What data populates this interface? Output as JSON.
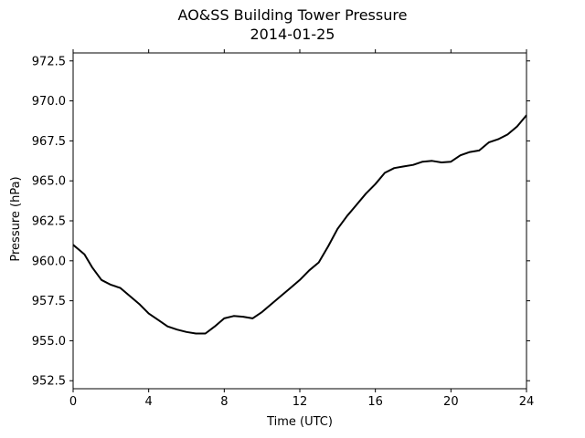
{
  "chart_data": {
    "type": "line",
    "title": "AO&SS Building Tower Pressure",
    "subtitle": "2014-01-25",
    "xlabel": "Time (UTC)",
    "ylabel": "Pressure (hPa)",
    "xlim": [
      0,
      24
    ],
    "ylim": [
      952.0,
      973.0
    ],
    "xticks": [
      0,
      4,
      8,
      12,
      16,
      20,
      24
    ],
    "xtick_labels": [
      "0",
      "4",
      "8",
      "12",
      "16",
      "20",
      "24"
    ],
    "yticks": [
      952.5,
      955.0,
      957.5,
      960.0,
      962.5,
      965.0,
      967.5,
      970.0,
      972.5
    ],
    "ytick_labels": [
      "952.5",
      "955.0",
      "957.5",
      "960.0",
      "962.5",
      "965.0",
      "967.5",
      "970.0",
      "972.5"
    ],
    "grid": false,
    "series": [
      {
        "color": "#000000",
        "x": [
          0,
          0.3,
          0.6,
          1.0,
          1.5,
          2.0,
          2.5,
          3.0,
          3.5,
          4.0,
          4.5,
          5.0,
          5.5,
          6.0,
          6.5,
          7.0,
          7.5,
          8.0,
          8.5,
          9.0,
          9.5,
          10.0,
          10.5,
          11.0,
          11.5,
          12.0,
          12.5,
          13.0,
          13.5,
          14.0,
          14.5,
          15.0,
          15.5,
          16.0,
          16.5,
          17.0,
          17.5,
          18.0,
          18.5,
          19.0,
          19.5,
          20.0,
          20.5,
          21.0,
          21.5,
          22.0,
          22.5,
          23.0,
          23.5,
          24.0
        ],
        "y": [
          961.0,
          960.7,
          960.4,
          959.6,
          958.8,
          958.5,
          958.3,
          957.8,
          957.3,
          956.7,
          956.3,
          955.9,
          955.7,
          955.55,
          955.45,
          955.45,
          955.9,
          956.4,
          956.55,
          956.5,
          956.4,
          956.8,
          957.3,
          957.8,
          958.3,
          958.8,
          959.4,
          959.9,
          960.9,
          962.0,
          962.8,
          963.5,
          964.2,
          964.8,
          965.5,
          965.8,
          965.9,
          966.0,
          966.2,
          966.25,
          966.15,
          966.2,
          966.6,
          966.8,
          966.9,
          967.4,
          967.6,
          967.9,
          968.4,
          969.1
        ]
      }
    ]
  }
}
